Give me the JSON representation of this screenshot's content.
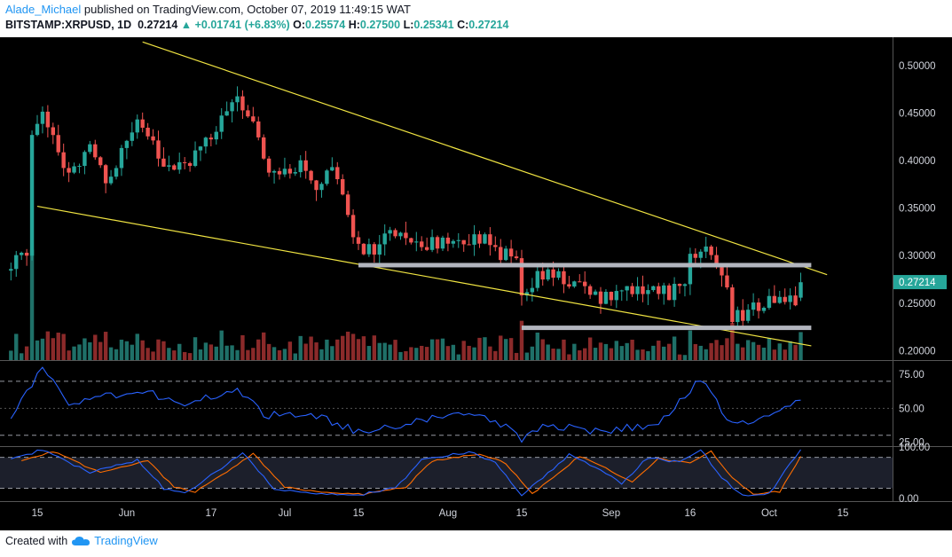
{
  "header": {
    "author": "Alade_Michael",
    "published_text": "published on TradingView.com, October 07, 2019 11:49:15 WAT",
    "symbol": "BITSTAMP:XRPUSD, 1D",
    "price": "0.27214",
    "change_arrow": "▲",
    "change": "+0.01741 (+6.83%)",
    "o_label": "O:",
    "o_value": "0.25574",
    "h_label": "H:",
    "h_value": "0.27500",
    "l_label": "L:",
    "l_value": "0.25341",
    "c_label": "C:",
    "c_value": "0.27214"
  },
  "footer": {
    "created_with": "Created with",
    "brand": "TradingView",
    "logo_icon": "tradingview-cloud-icon"
  },
  "colors": {
    "background": "#000000",
    "up_candle": "#26a69a",
    "down_candle": "#ef5350",
    "up_volume": "#1f7068",
    "down_volume": "#8b2a2a",
    "trendline": "#f0e442",
    "support_zone": "#b2b5be",
    "rsi_line": "#2962ff",
    "stoch_k": "#2962ff",
    "stoch_d": "#ff6d00",
    "price_label_bg": "#26a69a"
  },
  "chart_data": {
    "type": "candlestick",
    "x_ticks": [
      "15",
      "Jun",
      "17",
      "Jul",
      "15",
      "Aug",
      "15",
      "Sep",
      "16",
      "Oct",
      "15"
    ],
    "price_axis": {
      "ticks": [
        "0.50000",
        "0.45000",
        "0.40000",
        "0.35000",
        "0.30000",
        "0.25000",
        "0.20000"
      ],
      "range": [
        0.19,
        0.53
      ]
    },
    "last_price_label": "0.27214",
    "ohlc_anchors": [
      {
        "date": "2019-05-10",
        "close": 0.29
      },
      {
        "date": "2019-05-13",
        "close": 0.305
      },
      {
        "date": "2019-05-14",
        "close": 0.43
      },
      {
        "date": "2019-05-16",
        "close": 0.46
      },
      {
        "date": "2019-05-21",
        "close": 0.38
      },
      {
        "date": "2019-05-25",
        "close": 0.41
      },
      {
        "date": "2019-05-28",
        "close": 0.375
      },
      {
        "date": "2019-06-03",
        "close": 0.44
      },
      {
        "date": "2019-06-08",
        "close": 0.4
      },
      {
        "date": "2019-06-12",
        "close": 0.395
      },
      {
        "date": "2019-06-17",
        "close": 0.425
      },
      {
        "date": "2019-06-22",
        "close": 0.47
      },
      {
        "date": "2019-06-25",
        "close": 0.44
      },
      {
        "date": "2019-06-27",
        "close": 0.4
      },
      {
        "date": "2019-07-01",
        "close": 0.385
      },
      {
        "date": "2019-07-04",
        "close": 0.4
      },
      {
        "date": "2019-07-07",
        "close": 0.375
      },
      {
        "date": "2019-07-10",
        "close": 0.4
      },
      {
        "date": "2019-07-14",
        "close": 0.32
      },
      {
        "date": "2019-07-17",
        "close": 0.305
      },
      {
        "date": "2019-07-21",
        "close": 0.32
      },
      {
        "date": "2019-07-27",
        "close": 0.31
      },
      {
        "date": "2019-08-01",
        "close": 0.32
      },
      {
        "date": "2019-08-08",
        "close": 0.315
      },
      {
        "date": "2019-08-11",
        "close": 0.3
      },
      {
        "date": "2019-08-14",
        "close": 0.3
      },
      {
        "date": "2019-08-15",
        "close": 0.26
      },
      {
        "date": "2019-08-19",
        "close": 0.28
      },
      {
        "date": "2019-08-25",
        "close": 0.27
      },
      {
        "date": "2019-08-29",
        "close": 0.255
      },
      {
        "date": "2019-09-03",
        "close": 0.26
      },
      {
        "date": "2019-09-08",
        "close": 0.26
      },
      {
        "date": "2019-09-14",
        "close": 0.262
      },
      {
        "date": "2019-09-16",
        "close": 0.295
      },
      {
        "date": "2019-09-18",
        "close": 0.31
      },
      {
        "date": "2019-09-21",
        "close": 0.29
      },
      {
        "date": "2019-09-23",
        "close": 0.275
      },
      {
        "date": "2019-09-24",
        "close": 0.235
      },
      {
        "date": "2019-09-28",
        "close": 0.245
      },
      {
        "date": "2019-10-01",
        "close": 0.25
      },
      {
        "date": "2019-10-06",
        "close": 0.255
      },
      {
        "date": "2019-10-07",
        "close": 0.272
      }
    ],
    "annotations": {
      "resistance_line": [
        {
          "date": "2019-06-04",
          "price": 0.525
        },
        {
          "date": "2019-10-12",
          "price": 0.28
        }
      ],
      "support_line": [
        {
          "date": "2019-05-15",
          "price": 0.352
        },
        {
          "date": "2019-10-09",
          "price": 0.205
        }
      ],
      "zone_upper": {
        "price": 0.29,
        "from": "2019-07-15",
        "to": "2019-10-09"
      },
      "zone_lower": {
        "price": 0.224,
        "from": "2019-08-15",
        "to": "2019-10-09"
      }
    },
    "rsi": {
      "ticks": [
        "75.00",
        "50.00",
        "25.00"
      ],
      "range": [
        22,
        85
      ],
      "levels": [
        70,
        30
      ],
      "anchors": [
        {
          "date": "2019-05-10",
          "value": 45
        },
        {
          "date": "2019-05-16",
          "value": 80
        },
        {
          "date": "2019-05-21",
          "value": 55
        },
        {
          "date": "2019-06-05",
          "value": 62
        },
        {
          "date": "2019-06-12",
          "value": 52
        },
        {
          "date": "2019-06-22",
          "value": 65
        },
        {
          "date": "2019-06-27",
          "value": 45
        },
        {
          "date": "2019-07-07",
          "value": 45
        },
        {
          "date": "2019-07-15",
          "value": 32
        },
        {
          "date": "2019-07-25",
          "value": 40
        },
        {
          "date": "2019-08-05",
          "value": 45
        },
        {
          "date": "2019-08-11",
          "value": 38
        },
        {
          "date": "2019-08-15",
          "value": 28
        },
        {
          "date": "2019-08-20",
          "value": 37
        },
        {
          "date": "2019-08-30",
          "value": 33
        },
        {
          "date": "2019-09-10",
          "value": 38
        },
        {
          "date": "2019-09-18",
          "value": 72
        },
        {
          "date": "2019-09-24",
          "value": 38
        },
        {
          "date": "2019-10-01",
          "value": 42
        },
        {
          "date": "2019-10-07",
          "value": 56
        }
      ]
    },
    "stoch": {
      "ticks": [
        "100.00",
        "0.00"
      ],
      "range": [
        -5,
        100
      ],
      "levels": [
        80,
        20
      ],
      "k_anchors": [
        {
          "date": "2019-05-10",
          "value": 75
        },
        {
          "date": "2019-05-16",
          "value": 95
        },
        {
          "date": "2019-05-25",
          "value": 50
        },
        {
          "date": "2019-06-03",
          "value": 75
        },
        {
          "date": "2019-06-08",
          "value": 20
        },
        {
          "date": "2019-06-12",
          "value": 10
        },
        {
          "date": "2019-06-17",
          "value": 45
        },
        {
          "date": "2019-06-23",
          "value": 90
        },
        {
          "date": "2019-06-29",
          "value": 20
        },
        {
          "date": "2019-07-06",
          "value": 10
        },
        {
          "date": "2019-07-14",
          "value": 5
        },
        {
          "date": "2019-07-22",
          "value": 20
        },
        {
          "date": "2019-07-27",
          "value": 75
        },
        {
          "date": "2019-08-05",
          "value": 90
        },
        {
          "date": "2019-08-10",
          "value": 70
        },
        {
          "date": "2019-08-15",
          "value": 5
        },
        {
          "date": "2019-08-20",
          "value": 50
        },
        {
          "date": "2019-08-24",
          "value": 85
        },
        {
          "date": "2019-08-29",
          "value": 60
        },
        {
          "date": "2019-09-03",
          "value": 30
        },
        {
          "date": "2019-09-08",
          "value": 80
        },
        {
          "date": "2019-09-14",
          "value": 70
        },
        {
          "date": "2019-09-18",
          "value": 95
        },
        {
          "date": "2019-09-22",
          "value": 40
        },
        {
          "date": "2019-09-26",
          "value": 5
        },
        {
          "date": "2019-10-01",
          "value": 10
        },
        {
          "date": "2019-10-07",
          "value": 95
        }
      ]
    }
  }
}
